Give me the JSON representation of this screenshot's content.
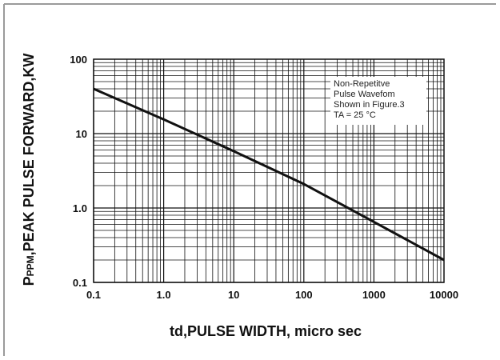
{
  "chart_data": {
    "type": "line",
    "x_scale": "log",
    "y_scale": "log",
    "xlim": [
      0.1,
      10000
    ],
    "ylim": [
      0.1,
      100
    ],
    "grid": true,
    "xlabel": "td,PULSE WIDTH, micro sec",
    "ylabel": "PPPM,PEAK PULSE FORWARD,KW",
    "x_ticks": [
      "0.1",
      "1.0",
      "10",
      "100",
      "1000",
      "10000"
    ],
    "y_ticks": [
      "0.1",
      "1.0",
      "10",
      "100"
    ],
    "series": [
      {
        "x": [
          0.1,
          1,
          10,
          100,
          1000,
          10000
        ],
        "y": [
          40,
          15.5,
          5.8,
          2.1,
          0.65,
          0.2
        ]
      }
    ],
    "annotation": {
      "lines": [
        "Non-Repetitve",
        "Pulse Wavefom",
        "Shown in Figure.3",
        "TA = 25 °C"
      ]
    },
    "colors": {
      "line": "#111111",
      "grid": "#111111",
      "frame": "#999999"
    }
  }
}
